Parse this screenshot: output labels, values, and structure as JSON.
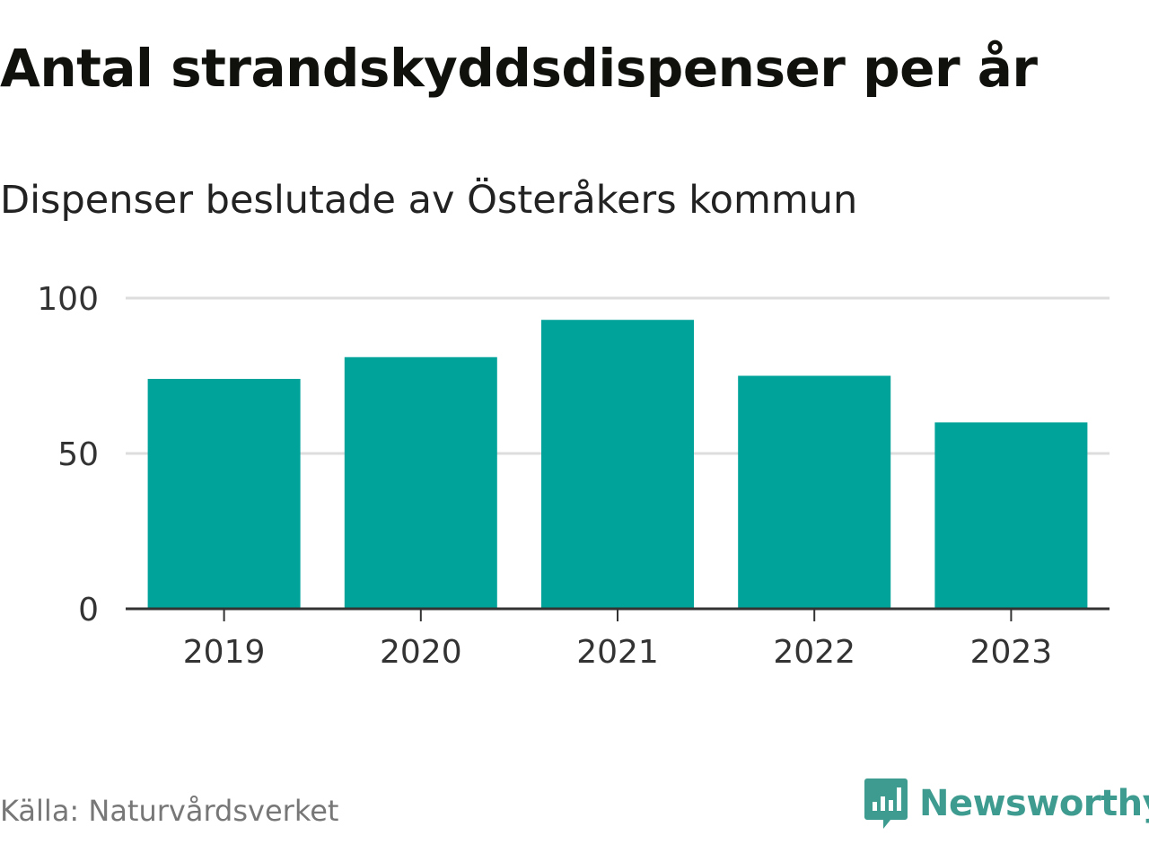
{
  "title": "Antal strandskyddsdispenser per år",
  "subtitle": "Dispenser beslutade av Österåkers kommun",
  "source": "Källa: Naturvårdsverket",
  "brand": "Newsworthy",
  "colors": {
    "bar": "#00a39a",
    "grid": "#dddddd",
    "axis": "#333333",
    "brand": "#3d9b8f"
  },
  "chart_data": {
    "type": "bar",
    "title": "Antal strandskyddsdispenser per år",
    "subtitle": "Dispenser beslutade av Österåkers kommun",
    "xlabel": "",
    "ylabel": "",
    "categories": [
      "2019",
      "2020",
      "2021",
      "2022",
      "2023"
    ],
    "values": [
      74,
      81,
      93,
      75,
      60
    ],
    "ylim": [
      0,
      100
    ],
    "yticks": [
      0,
      50,
      100
    ],
    "grid": true
  }
}
